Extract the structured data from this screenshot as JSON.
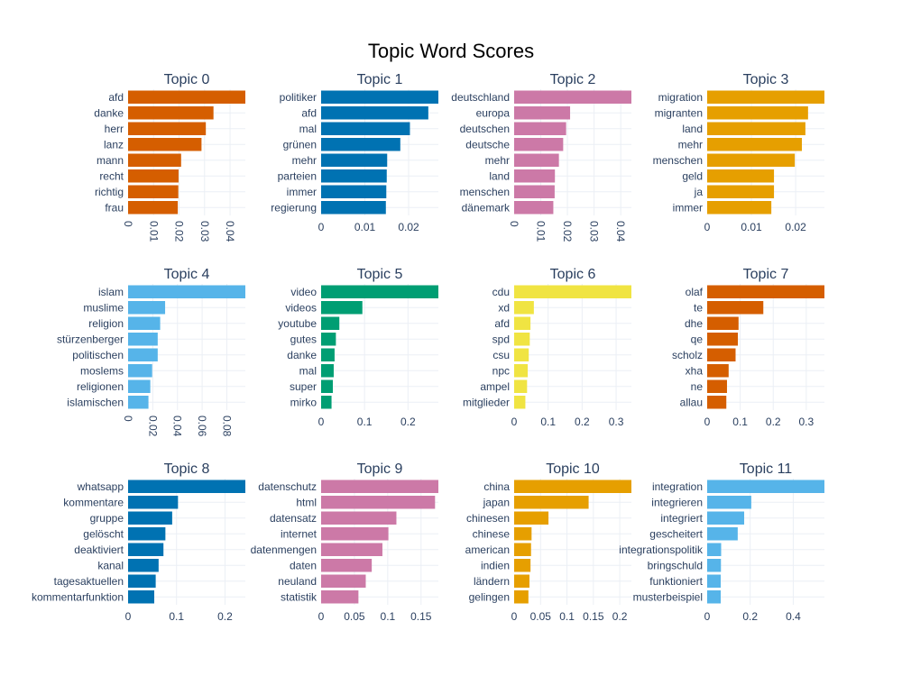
{
  "figure": {
    "title": "Topic Word Scores"
  },
  "chart_data": [
    {
      "type": "bar",
      "orientation": "horizontal",
      "title": "Topic 0",
      "color": "#D55E00",
      "categories": [
        "afd",
        "danke",
        "herr",
        "lanz",
        "mann",
        "recht",
        "richtig",
        "frau"
      ],
      "values": [
        0.046,
        0.0335,
        0.0305,
        0.0288,
        0.0208,
        0.0198,
        0.0197,
        0.0195
      ],
      "xlim": [
        0,
        0.046
      ],
      "xticks": [
        "0",
        "0.01",
        "0.02",
        "0.03",
        "0.04"
      ],
      "xtick_values": [
        0,
        0.01,
        0.02,
        0.03,
        0.04
      ],
      "rotated_ticks": true
    },
    {
      "type": "bar",
      "orientation": "horizontal",
      "title": "Topic 1",
      "color": "#0072B2",
      "categories": [
        "politiker",
        "afd",
        "mal",
        "grünen",
        "mehr",
        "parteien",
        "immer",
        "regierung"
      ],
      "values": [
        0.0268,
        0.0245,
        0.0203,
        0.0181,
        0.0151,
        0.015,
        0.0149,
        0.0148
      ],
      "xlim": [
        0,
        0.0268
      ],
      "xticks": [
        "0",
        "0.01",
        "0.02"
      ],
      "xtick_values": [
        0,
        0.01,
        0.02
      ],
      "rotated_ticks": false
    },
    {
      "type": "bar",
      "orientation": "horizontal",
      "title": "Topic 2",
      "color": "#CC79A7",
      "categories": [
        "deutschland",
        "europa",
        "deutschen",
        "deutsche",
        "mehr",
        "land",
        "menschen",
        "dänemark"
      ],
      "values": [
        0.044,
        0.021,
        0.0195,
        0.0184,
        0.0168,
        0.0153,
        0.0152,
        0.0147
      ],
      "xlim": [
        0,
        0.044
      ],
      "xticks": [
        "0",
        "0.01",
        "0.02",
        "0.03",
        "0.04"
      ],
      "xtick_values": [
        0,
        0.01,
        0.02,
        0.03,
        0.04
      ],
      "rotated_ticks": true
    },
    {
      "type": "bar",
      "orientation": "horizontal",
      "title": "Topic 3",
      "color": "#E69F00",
      "categories": [
        "migration",
        "migranten",
        "land",
        "mehr",
        "menschen",
        "geld",
        "ja",
        "immer"
      ],
      "values": [
        0.0265,
        0.0228,
        0.0222,
        0.0214,
        0.0198,
        0.0151,
        0.0151,
        0.0145
      ],
      "xlim": [
        0,
        0.0265
      ],
      "xticks": [
        "0",
        "0.01",
        "0.02"
      ],
      "xtick_values": [
        0,
        0.01,
        0.02
      ],
      "rotated_ticks": false
    },
    {
      "type": "bar",
      "orientation": "horizontal",
      "title": "Topic 4",
      "color": "#56B4E9",
      "categories": [
        "islam",
        "muslime",
        "religion",
        "stürzenberger",
        "politischen",
        "moslems",
        "religionen",
        "islamischen"
      ],
      "values": [
        0.095,
        0.03,
        0.026,
        0.024,
        0.024,
        0.0195,
        0.018,
        0.0165
      ],
      "xlim": [
        0,
        0.095
      ],
      "xticks": [
        "0",
        "0.02",
        "0.04",
        "0.06",
        "0.08"
      ],
      "xtick_values": [
        0,
        0.02,
        0.04,
        0.06,
        0.08
      ],
      "rotated_ticks": true
    },
    {
      "type": "bar",
      "orientation": "horizontal",
      "title": "Topic 5",
      "color": "#009E73",
      "categories": [
        "video",
        "videos",
        "youtube",
        "gutes",
        "danke",
        "mal",
        "super",
        "mirko"
      ],
      "values": [
        0.27,
        0.095,
        0.042,
        0.034,
        0.031,
        0.029,
        0.027,
        0.024
      ],
      "xlim": [
        0,
        0.27
      ],
      "xticks": [
        "0",
        "0.1",
        "0.2"
      ],
      "xtick_values": [
        0,
        0.1,
        0.2
      ],
      "rotated_ticks": false
    },
    {
      "type": "bar",
      "orientation": "horizontal",
      "title": "Topic 6",
      "color": "#F0E442",
      "categories": [
        "cdu",
        "xd",
        "afd",
        "spd",
        "csu",
        "npc",
        "ampel",
        "mitglieder"
      ],
      "values": [
        0.345,
        0.058,
        0.048,
        0.046,
        0.043,
        0.04,
        0.038,
        0.033
      ],
      "xlim": [
        0,
        0.345
      ],
      "xticks": [
        "0",
        "0.1",
        "0.2",
        "0.3"
      ],
      "xtick_values": [
        0,
        0.1,
        0.2,
        0.3
      ],
      "rotated_ticks": false
    },
    {
      "type": "bar",
      "orientation": "horizontal",
      "title": "Topic 7",
      "color": "#D55E00",
      "categories": [
        "olaf",
        "te",
        "dhe",
        "qe",
        "scholz",
        "xha",
        "ne",
        "allau"
      ],
      "values": [
        0.355,
        0.17,
        0.095,
        0.093,
        0.086,
        0.065,
        0.06,
        0.058
      ],
      "xlim": [
        0,
        0.355
      ],
      "xticks": [
        "0",
        "0.1",
        "0.2",
        "0.3"
      ],
      "xtick_values": [
        0,
        0.1,
        0.2,
        0.3
      ],
      "rotated_ticks": false
    },
    {
      "type": "bar",
      "orientation": "horizontal",
      "title": "Topic 8",
      "color": "#0072B2",
      "categories": [
        "whatsapp",
        "kommentare",
        "gruppe",
        "gelöscht",
        "deaktiviert",
        "kanal",
        "tagesaktuellen",
        "kommentarfunktion"
      ],
      "values": [
        0.242,
        0.103,
        0.091,
        0.077,
        0.073,
        0.063,
        0.057,
        0.054
      ],
      "xlim": [
        0,
        0.242
      ],
      "xticks": [
        "0",
        "0.1",
        "0.2"
      ],
      "xtick_values": [
        0,
        0.1,
        0.2
      ],
      "rotated_ticks": false
    },
    {
      "type": "bar",
      "orientation": "horizontal",
      "title": "Topic 9",
      "color": "#CC79A7",
      "categories": [
        "datenschutz",
        "html",
        "datensatz",
        "internet",
        "datenmengen",
        "daten",
        "neuland",
        "statistik"
      ],
      "values": [
        0.176,
        0.171,
        0.113,
        0.101,
        0.092,
        0.076,
        0.067,
        0.056
      ],
      "xlim": [
        0,
        0.176
      ],
      "xticks": [
        "0",
        "0.05",
        "0.1",
        "0.15"
      ],
      "xtick_values": [
        0,
        0.05,
        0.1,
        0.15
      ],
      "rotated_ticks": false
    },
    {
      "type": "bar",
      "orientation": "horizontal",
      "title": "Topic 10",
      "color": "#E69F00",
      "categories": [
        "china",
        "japan",
        "chinesen",
        "chinese",
        "american",
        "indien",
        "ländern",
        "gelingen"
      ],
      "values": [
        0.222,
        0.141,
        0.065,
        0.033,
        0.032,
        0.031,
        0.029,
        0.027
      ],
      "xlim": [
        0,
        0.222
      ],
      "xticks": [
        "0",
        "0.05",
        "0.1",
        "0.15",
        "0.2"
      ],
      "xtick_values": [
        0,
        0.05,
        0.1,
        0.15,
        0.2
      ],
      "rotated_ticks": false
    },
    {
      "type": "bar",
      "orientation": "horizontal",
      "title": "Topic 11",
      "color": "#56B4E9",
      "categories": [
        "integration",
        "integrieren",
        "integriert",
        "gescheitert",
        "integrationspolitik",
        "bringschuld",
        "funktioniert",
        "musterbeispiel"
      ],
      "values": [
        0.545,
        0.205,
        0.172,
        0.142,
        0.065,
        0.064,
        0.063,
        0.063
      ],
      "xlim": [
        0,
        0.545
      ],
      "xticks": [
        "0",
        "0.2",
        "0.4"
      ],
      "xtick_values": [
        0,
        0.2,
        0.4
      ],
      "rotated_ticks": false
    }
  ]
}
